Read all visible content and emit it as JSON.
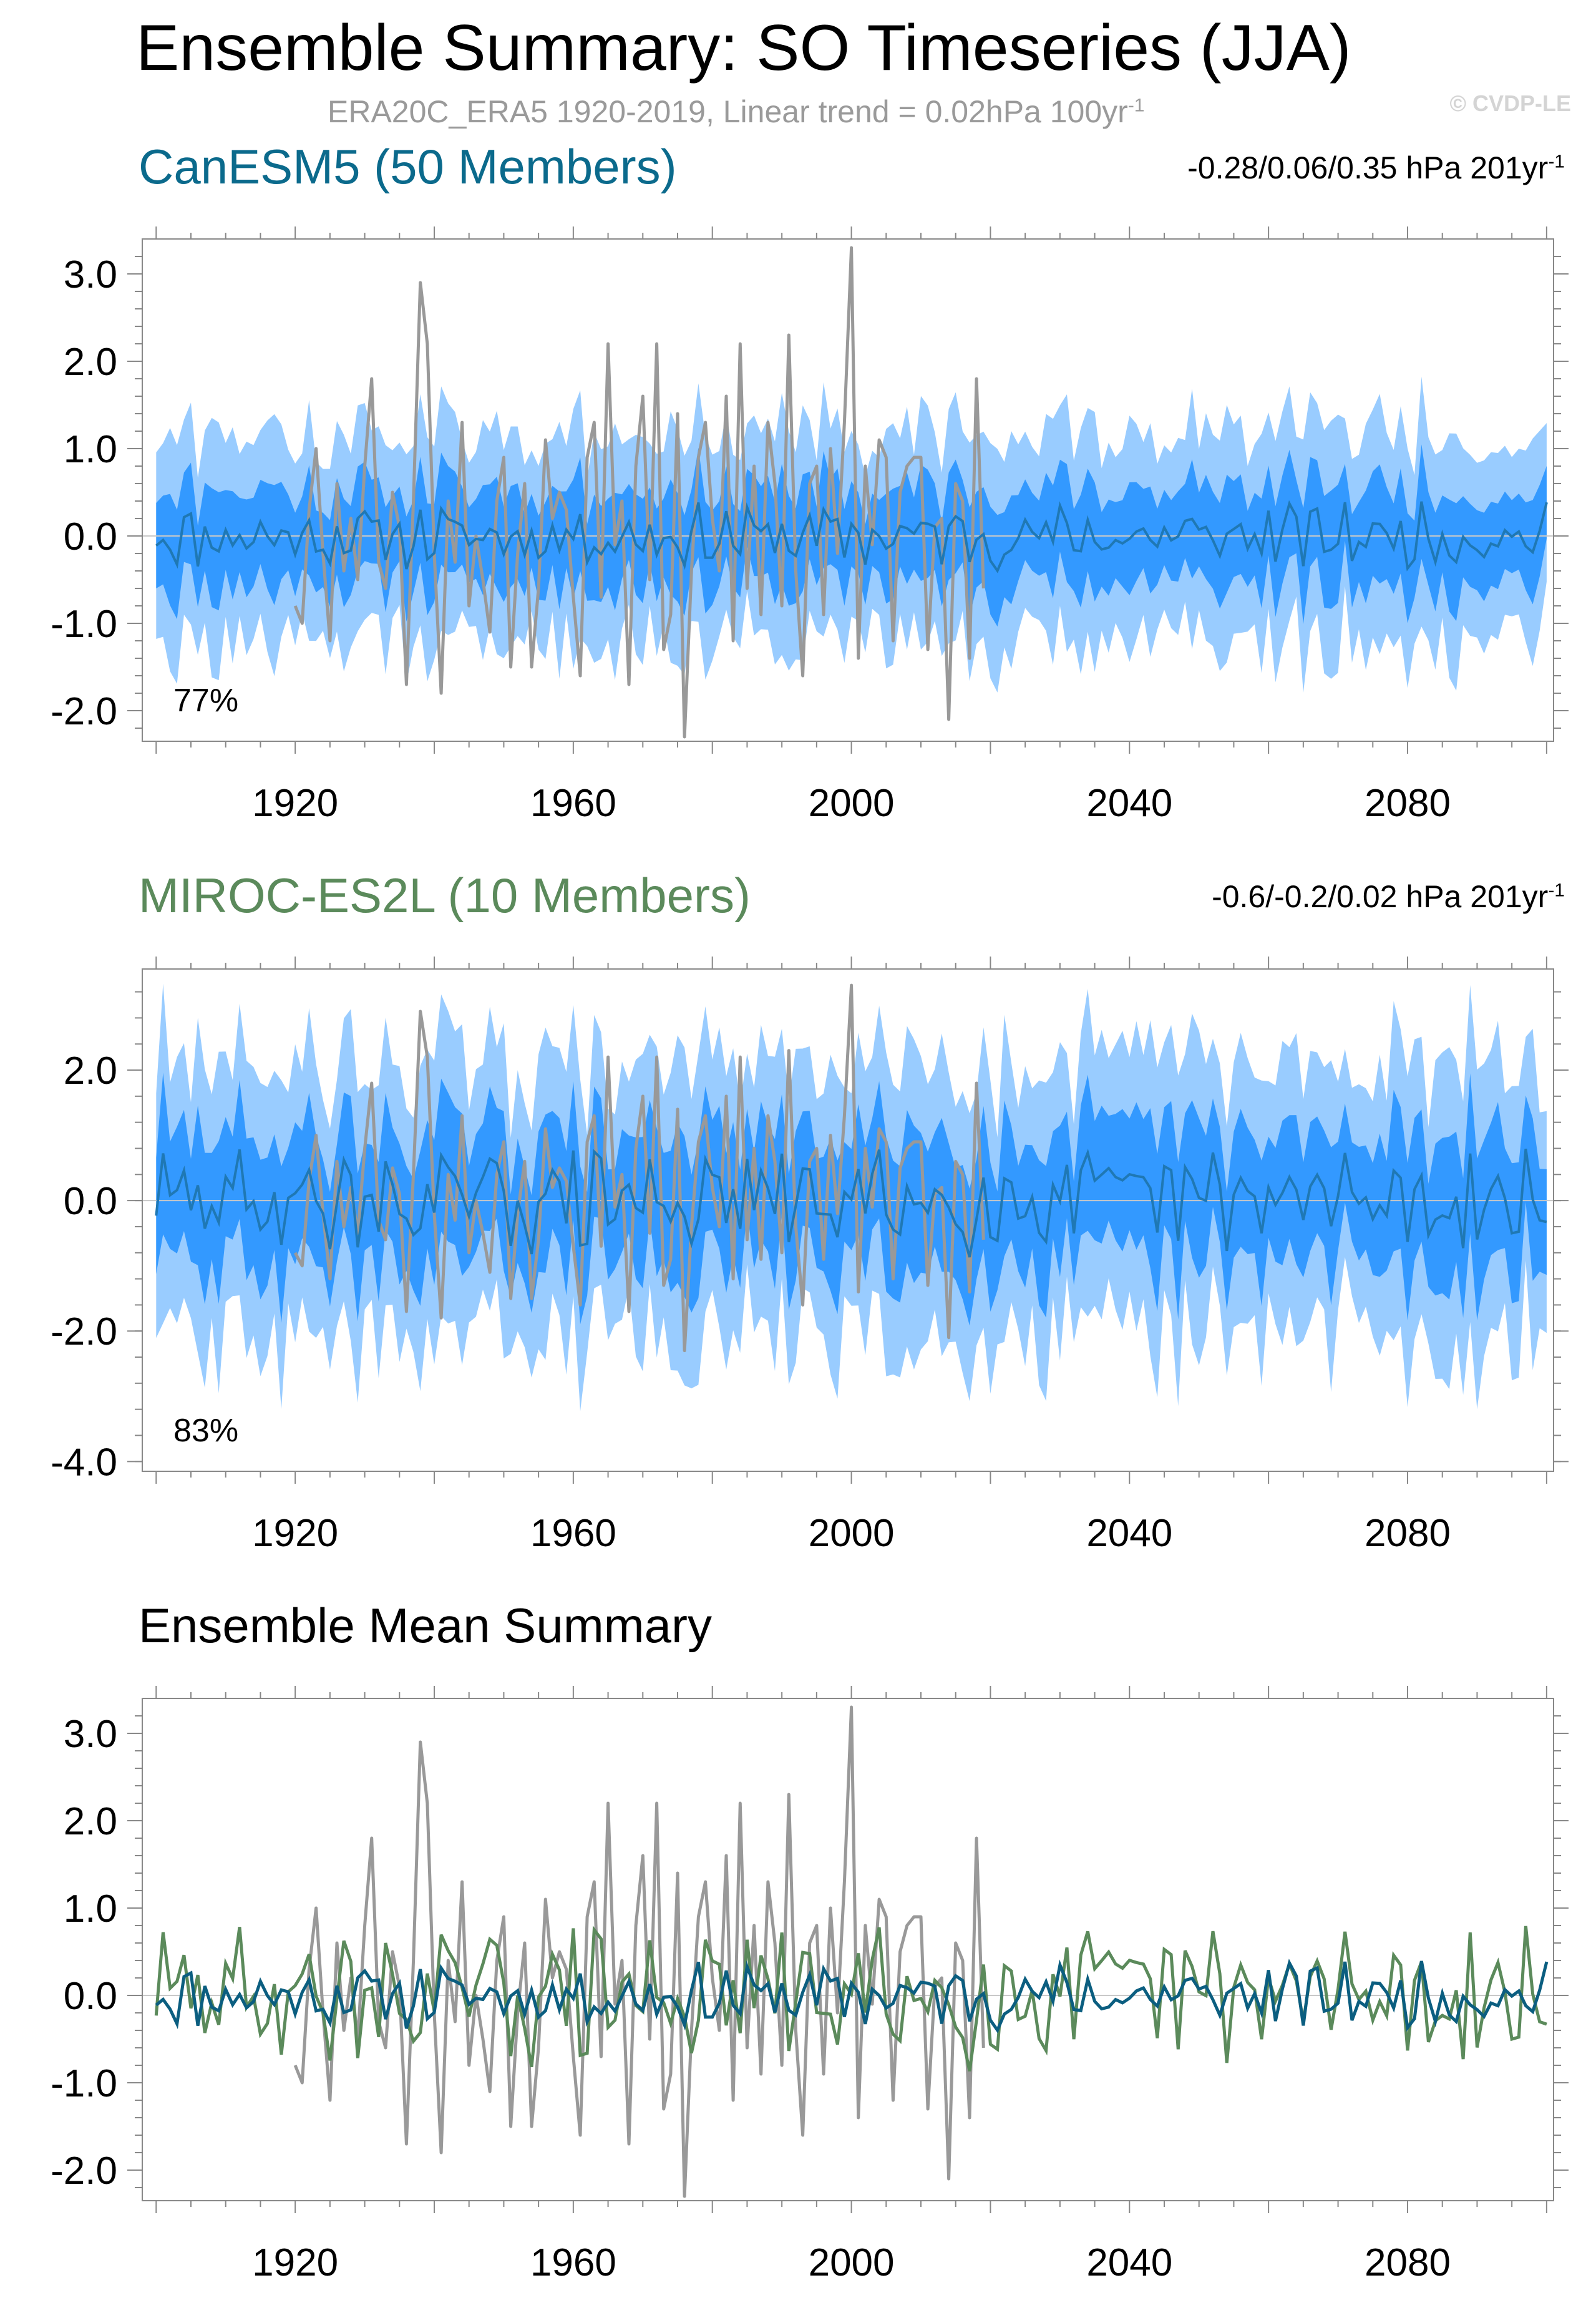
{
  "header": {
    "title": "Ensemble Summary: SO Timeseries (JJA)",
    "subtitle_pre": "ERA20C_ERA5 1920-2019, Linear trend = 0.02hPa 100yr",
    "subtitle_sup": "-1",
    "watermark": "© CVDP-LE"
  },
  "colors": {
    "observations": "#999999",
    "band_inner": "#3399ff",
    "band_outer": "#99ccff",
    "canesm5_mean": "#1f78b4",
    "canesm5_summary": "#0b5e80",
    "miroc_title": "#5b8a5b",
    "miroc_summary": "#5b8a5b",
    "canesm5_title": "#0b6a8c",
    "zero_line": "#c8c8c8"
  },
  "chart_data": [
    {
      "type": "area",
      "title": "CanESM5 (50 Members)",
      "trend_pre": "-0.28/0.06/0.35 hPa 201yr",
      "trend_sup": "-1",
      "annotation": "77%",
      "x_start": 1900,
      "x_end": 2100,
      "xlim": [
        1898,
        2101
      ],
      "ylim": [
        -2.35,
        3.4
      ],
      "yticks": [
        -2.0,
        -1.0,
        0.0,
        1.0,
        2.0,
        3.0
      ],
      "ytick_labels": [
        "-2.0",
        "-1.0",
        "0.0",
        "1.0",
        "2.0",
        "3.0"
      ],
      "xticks": [
        1920,
        1960,
        2000,
        2040,
        2080
      ],
      "xtick_labels": [
        "1920",
        "1960",
        "2000",
        "2040",
        "2080"
      ],
      "series": [
        {
          "name": "ensemble mean",
          "role": "mean",
          "amp": 0.3,
          "seed": 11
        },
        {
          "role": "inner_band",
          "halfwidth": 0.55
        },
        {
          "role": "outer_band",
          "halfwidth": 1.2
        }
      ]
    },
    {
      "type": "area",
      "title": "MIROC-ES2L (10 Members)",
      "trend_pre": "-0.6/-0.2/0.02 hPa 201yr",
      "trend_sup": "-1",
      "annotation": "83%",
      "x_start": 1900,
      "x_end": 2100,
      "xlim": [
        1898,
        2101
      ],
      "ylim": [
        -4.15,
        3.55
      ],
      "yticks": [
        -4.0,
        -2.0,
        0.0,
        2.0
      ],
      "ytick_labels": [
        "-4.0",
        "-2.0",
        "0.0",
        "2.0"
      ],
      "xticks": [
        1920,
        1960,
        2000,
        2040,
        2080
      ],
      "xtick_labels": [
        "1920",
        "1960",
        "2000",
        "2040",
        "2080"
      ],
      "series": [
        {
          "name": "ensemble mean",
          "role": "mean",
          "amp": 0.65,
          "seed": 29
        },
        {
          "role": "inner_band",
          "halfwidth": 1.0
        },
        {
          "role": "outer_band",
          "halfwidth": 2.1
        }
      ]
    },
    {
      "type": "line",
      "title": "Ensemble Mean Summary",
      "x_start": 1900,
      "x_end": 2100,
      "xlim": [
        1898,
        2101
      ],
      "ylim": [
        -2.35,
        3.4
      ],
      "yticks": [
        -2.0,
        -1.0,
        0.0,
        1.0,
        2.0,
        3.0
      ],
      "ytick_labels": [
        "-2.0",
        "-1.0",
        "0.0",
        "1.0",
        "2.0",
        "3.0"
      ],
      "xticks": [
        1920,
        1960,
        2000,
        2040,
        2080
      ],
      "xtick_labels": [
        "1920",
        "1960",
        "2000",
        "2040",
        "2080"
      ]
    }
  ],
  "observations": {
    "name": "ERA20C_ERA5",
    "years": [
      1920,
      1921,
      1922,
      1923,
      1924,
      1925,
      1926,
      1927,
      1928,
      1929,
      1930,
      1931,
      1932,
      1933,
      1934,
      1935,
      1936,
      1937,
      1938,
      1939,
      1940,
      1941,
      1942,
      1943,
      1944,
      1945,
      1946,
      1947,
      1948,
      1949,
      1950,
      1951,
      1952,
      1953,
      1954,
      1955,
      1956,
      1957,
      1958,
      1959,
      1960,
      1961,
      1962,
      1963,
      1964,
      1965,
      1966,
      1967,
      1968,
      1969,
      1970,
      1971,
      1972,
      1973,
      1974,
      1975,
      1976,
      1977,
      1978,
      1979,
      1980,
      1981,
      1982,
      1983,
      1984,
      1985,
      1986,
      1987,
      1988,
      1989,
      1990,
      1991,
      1992,
      1993,
      1994,
      1995,
      1996,
      1997,
      1998,
      1999,
      2000,
      2001,
      2002,
      2003,
      2004,
      2005,
      2006,
      2007,
      2008,
      2009,
      2010,
      2011,
      2012,
      2013,
      2014,
      2015,
      2016,
      2017,
      2018,
      2019
    ],
    "values": [
      -0.8,
      -1.0,
      0.3,
      1.0,
      -0.2,
      -1.2,
      0.6,
      -0.4,
      0.2,
      -0.5,
      0.8,
      1.8,
      -0.3,
      -0.6,
      0.5,
      0.1,
      -1.7,
      0.4,
      2.9,
      2.2,
      -0.2,
      -1.8,
      0.4,
      -0.3,
      1.3,
      -0.8,
      0.0,
      -0.5,
      -1.1,
      0.4,
      0.9,
      -1.5,
      -0.2,
      0.6,
      -1.5,
      -0.6,
      1.1,
      0.2,
      0.5,
      0.3,
      -0.7,
      -1.6,
      0.9,
      1.3,
      -0.7,
      2.2,
      -0.1,
      0.4,
      -1.7,
      0.8,
      1.6,
      -0.5,
      2.2,
      -1.3,
      -0.9,
      1.4,
      -2.3,
      -0.4,
      0.9,
      1.3,
      0.2,
      -0.4,
      1.6,
      -1.2,
      2.2,
      -0.6,
      0.8,
      -0.9,
      1.3,
      0.6,
      -0.8,
      2.3,
      -0.4,
      -1.6,
      0.6,
      0.8,
      -0.9,
      1.0,
      -0.2,
      1.3,
      3.3,
      -1.4,
      0.8,
      -0.1,
      1.1,
      0.9,
      -1.2,
      0.5,
      0.8,
      0.9,
      0.9,
      -1.3,
      0.1,
      0.2,
      -2.1,
      0.6,
      0.4,
      -1.4,
      1.8,
      -0.6
    ]
  }
}
